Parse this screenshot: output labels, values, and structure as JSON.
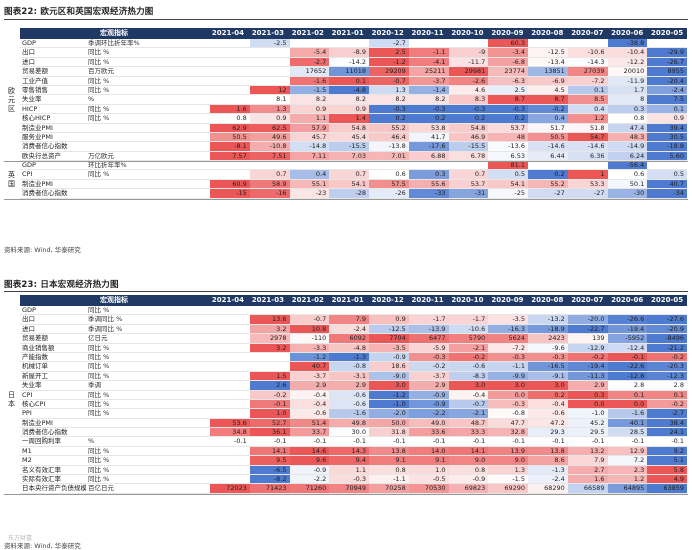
{
  "panel1": {
    "title": "图表22: 欧元区和英国宏观经济热力图",
    "indicator_header": "宏观指标",
    "columns": [
      "2021-04",
      "2021-03",
      "2021-02",
      "2021-01",
      "2020-12",
      "2020-11",
      "2020-10",
      "2020-09",
      "2020-08",
      "2020-07",
      "2020-06",
      "2020-05"
    ],
    "groups": [
      {
        "label": "欧元区",
        "chars": [
          "欧",
          "元",
          "区"
        ],
        "rows": [
          {
            "name": "GDP",
            "unit": "季调环比折年率%",
            "values": [
              "",
              "-2.5",
              "",
              "",
              "-2.7",
              "",
              "",
              "60.3",
              "",
              "",
              "-38.8",
              ""
            ]
          },
          {
            "name": "出口",
            "unit": "同比 %",
            "values": [
              "",
              "",
              "-5.4",
              "-8.9",
              "2.5",
              "-1.1",
              "-9",
              "-3.4",
              "-12.5",
              "-10.6",
              "-10.4",
              "-29.9"
            ]
          },
          {
            "name": "进口",
            "unit": "同比 %",
            "values": [
              "",
              "",
              "-2.7",
              "-14.2",
              "-1.2",
              "-4.1",
              "-11.7",
              "-6.8",
              "-13.4",
              "-14.3",
              "-12.2",
              "-26.7"
            ]
          },
          {
            "name": "贸易差额",
            "unit": "百万欧元",
            "values": [
              "",
              "",
              "17652",
              "11018",
              "29209",
              "25211",
              "29981",
              "23774",
              "13851",
              "27039",
              "20010",
              "8955"
            ]
          },
          {
            "name": "工业产值",
            "unit": "同比 %",
            "values": [
              "",
              "",
              "-1.6",
              "0.1",
              "-0.7",
              "-3.7",
              "-2.6",
              "-6.3",
              "-6.9",
              "-7.2",
              "-11.9",
              "-20.4"
            ]
          },
          {
            "name": "零售销售",
            "unit": "同比 %",
            "values": [
              "",
              "12",
              "-1.5",
              "-4.8",
              "1.3",
              "-1.4",
              "4.6",
              "2.5",
              "4.5",
              "0.1",
              "1.7",
              "-2.4"
            ]
          },
          {
            "name": "失业率",
            "unit": "%",
            "values": [
              "",
              "8.1",
              "8.2",
              "8.2",
              "8.2",
              "8.2",
              "8.3",
              "8.7",
              "8.7",
              "8.5",
              "8",
              "7.5"
            ]
          },
          {
            "name": "HICP",
            "unit": "同比 %",
            "values": [
              "1.6",
              "1.3",
              "0.9",
              "0.9",
              "-0.3",
              "-0.3",
              "-0.3",
              "-0.3",
              "-0.2",
              "0.4",
              "0.3",
              "0.1"
            ]
          },
          {
            "name": "核心HICP",
            "unit": "同比 %",
            "values": [
              "0.8",
              "0.9",
              "1.1",
              "1.4",
              "0.2",
              "0.2",
              "0.2",
              "0.2",
              "0.4",
              "1.2",
              "0.8",
              "0.9"
            ]
          },
          {
            "name": "制造业PMI",
            "unit": "",
            "values": [
              "62.9",
              "62.5",
              "57.9",
              "54.8",
              "55.2",
              "53.8",
              "54.8",
              "53.7",
              "51.7",
              "51.8",
              "47.4",
              "39.4"
            ]
          },
          {
            "name": "服务业PMI",
            "unit": "",
            "values": [
              "50.5",
              "49.6",
              "45.7",
              "45.4",
              "46.4",
              "41.7",
              "46.9",
              "48",
              "50.5",
              "54.7",
              "48.3",
              "30.5"
            ]
          },
          {
            "name": "消费者信心指数",
            "unit": "",
            "values": [
              "-8.1",
              "-10.8",
              "-14.8",
              "-15.5",
              "-13.8",
              "-17.6",
              "-15.5",
              "-13.6",
              "-14.6",
              "-14.6",
              "-14.9",
              "-18.8"
            ]
          },
          {
            "name": "欧央行总资产",
            "unit": "万亿欧元",
            "values": [
              "7.57",
              "7.51",
              "7.11",
              "7.03",
              "7.01",
              "6.88",
              "6.78",
              "6.53",
              "6.44",
              "6.36",
              "6.24",
              "5.60"
            ]
          }
        ]
      },
      {
        "label": "英国",
        "chars": [
          "英",
          "国"
        ],
        "rows": [
          {
            "name": "GDP",
            "unit": "环比折年率%",
            "values": [
              "",
              "",
              "",
              "",
              "",
              "",
              "",
              "81.1",
              "",
              "",
              "-56.4",
              ""
            ]
          },
          {
            "name": "CPI",
            "unit": "同比 %",
            "values": [
              "",
              "0.7",
              "0.4",
              "0.7",
              "0.6",
              "0.3",
              "0.7",
              "0.5",
              "0.2",
              "1",
              "0.6",
              "0.5"
            ]
          },
          {
            "name": "制造业PMI",
            "unit": "",
            "values": [
              "60.9",
              "58.9",
              "55.1",
              "54.1",
              "57.5",
              "55.6",
              "53.7",
              "54.1",
              "55.2",
              "53.3",
              "50.1",
              "40.7"
            ]
          },
          {
            "name": "消费者信心指数",
            "unit": "",
            "values": [
              "-15",
              "-16",
              "-23",
              "-28",
              "-26",
              "-33",
              "-31",
              "-25",
              "-27",
              "-27",
              "-30",
              "-34"
            ]
          }
        ]
      }
    ],
    "source": "资料来源: Wind, 华泰研究"
  },
  "panel2": {
    "title": "图表23: 日本宏观经济热力图",
    "indicator_header": "宏观指标",
    "columns": [
      "2021-04",
      "2021-03",
      "2021-02",
      "2021-01",
      "2020-12",
      "2020-11",
      "2020-10",
      "2020-09",
      "2020-08",
      "2020-07",
      "2020-06",
      "2020-05"
    ],
    "groups": [
      {
        "label": "日本",
        "chars": [
          "日",
          "本"
        ],
        "rows": [
          {
            "name": "GDP",
            "unit": "同比 %",
            "values": [
              "",
              "",
              "",
              "",
              "",
              "",
              "",
              "",
              "",
              "",
              "",
              ""
            ]
          },
          {
            "name": "出口",
            "unit": "季调同比 %",
            "values": [
              "",
              "13.6",
              "-0.7",
              "7.9",
              "0.9",
              "-1.7",
              "-1.7",
              "-3.5",
              "-13.2",
              "-20.0",
              "-26.6",
              "-27.6"
            ]
          },
          {
            "name": "进口",
            "unit": "季调同比 %",
            "values": [
              "",
              "3.2",
              "10.8",
              "-2.4",
              "-12.5",
              "-13.9",
              "-10.6",
              "-16.3",
              "-18.9",
              "-22.7",
              "-19.4",
              "-20.9"
            ]
          },
          {
            "name": "贸易差额",
            "unit": "亿日元",
            "values": [
              "",
              "2978",
              "-110",
              "6092",
              "7704",
              "6477",
              "5790",
              "5624",
              "2423",
              "139",
              "-5952",
              "-8496"
            ]
          },
          {
            "name": "商业销售额",
            "unit": "同比 %",
            "values": [
              "",
              "3.2",
              "-3.3",
              "-4.8",
              "-3.5",
              "-5.9",
              "-2.1",
              "-7.2",
              "-9.6",
              "-12.9",
              "-12.4",
              "-21.2"
            ]
          },
          {
            "name": "产能指数",
            "unit": "同比 %",
            "values": [
              "",
              "",
              "-1.2",
              "-1.3",
              "-0.9",
              "-0.3",
              "-0.2",
              "-0.3",
              "-0.3",
              "-0.2",
              "-0.1",
              "-0.2"
            ]
          },
          {
            "name": "机械订单",
            "unit": "同比 %",
            "values": [
              "",
              "",
              "40.7",
              "-0.8",
              "18.6",
              "-0.2",
              "-0.6",
              "-1.1",
              "-16.5",
              "-19.4",
              "-22.6",
              "-20.3"
            ]
          },
          {
            "name": "新屋开工",
            "unit": "同比 %",
            "values": [
              "",
              "1.5",
              "-3.7",
              "-3.1",
              "-9.0",
              "-3.7",
              "-8.3",
              "-9.9",
              "-9.1",
              "-11.3",
              "-12.8",
              "-12.3"
            ]
          },
          {
            "name": "失业率",
            "unit": "季调",
            "values": [
              "",
              "2.6",
              "2.9",
              "2.9",
              "3.0",
              "2.9",
              "3.0",
              "3.0",
              "3.0",
              "2.9",
              "2.8",
              "2.8"
            ]
          },
          {
            "name": "CPI",
            "unit": "同比 %",
            "values": [
              "",
              "-0.2",
              "-0.4",
              "-0.6",
              "-1.2",
              "-0.9",
              "-0.4",
              "0.0",
              "0.2",
              "0.3",
              "0.1",
              "0.1"
            ]
          },
          {
            "name": "核心CPI",
            "unit": "同比 %",
            "values": [
              "",
              "-0.1",
              "-0.4",
              "-0.6",
              "-1.0",
              "-0.9",
              "-0.7",
              "-0.3",
              "-0.4",
              "0.0",
              "0.0",
              "-0.2"
            ]
          },
          {
            "name": "PPI",
            "unit": "同比 %",
            "values": [
              "",
              "1.0",
              "-0.6",
              "-1.6",
              "-2.0",
              "-2.2",
              "-2.1",
              "-0.8",
              "-0.6",
              "-1.0",
              "-1.6",
              "-2.7"
            ]
          },
          {
            "name": "制造业PMI",
            "unit": "",
            "values": [
              "53.6",
              "52.7",
              "51.4",
              "49.8",
              "50.0",
              "49.0",
              "48.7",
              "47.7",
              "47.2",
              "45.2",
              "40.1",
              "38.4"
            ]
          },
          {
            "name": "消费者信心指数",
            "unit": "",
            "values": [
              "34.8",
              "36.1",
              "33.7",
              "30.0",
              "31.8",
              "33.6",
              "33.3",
              "32.8",
              "29.3",
              "29.5",
              "28.5",
              "24.1"
            ]
          },
          {
            "name": "一周回购利率",
            "unit": "%",
            "values": [
              "-0.1",
              "-0.1",
              "-0.1",
              "-0.1",
              "-0.1",
              "-0.1",
              "-0.1",
              "-0.1",
              "-0.1",
              "-0.1",
              "-0.1",
              "-0.1"
            ]
          },
          {
            "name": "M1",
            "unit": "同比 %",
            "values": [
              "",
              "14.1",
              "14.6",
              "14.3",
              "13.8",
              "14.0",
              "14.1",
              "13.9",
              "13.8",
              "13.2",
              "12.9",
              "9.2"
            ]
          },
          {
            "name": "M2",
            "unit": "同比 %",
            "values": [
              "",
              "9.5",
              "9.6",
              "9.4",
              "9.1",
              "9.1",
              "9.0",
              "9.0",
              "8.6",
              "7.9",
              "7.2",
              "5.1"
            ]
          },
          {
            "name": "名义有效汇率",
            "unit": "同比 %",
            "values": [
              "",
              "-6.5",
              "-0.9",
              "1.1",
              "0.8",
              "1.0",
              "0.8",
              "1.3",
              "-1.3",
              "2.7",
              "2.3",
              "5.8"
            ]
          },
          {
            "name": "实际有效汇率",
            "unit": "同比 %",
            "values": [
              "",
              "-8.2",
              "-2.2",
              "-0.3",
              "-1.1",
              "-0.5",
              "-0.9",
              "-1.5",
              "-2.4",
              "1.6",
              "1.2",
              "4.9"
            ]
          },
          {
            "name": "日本央行资产负债规模",
            "unit": "百亿日元",
            "values": [
              "72023",
              "71423",
              "71260",
              "70949",
              "70258",
              "70530",
              "69823",
              "69290",
              "68290",
              "66589",
              "64895",
              "63859"
            ]
          }
        ]
      }
    ],
    "source": "资料来源: Wind, 华泰研究"
  },
  "watermark": "东方财富",
  "colors": {
    "header": "#1f3864",
    "positive": "#e83a3a",
    "negative": "#2f64c8"
  }
}
